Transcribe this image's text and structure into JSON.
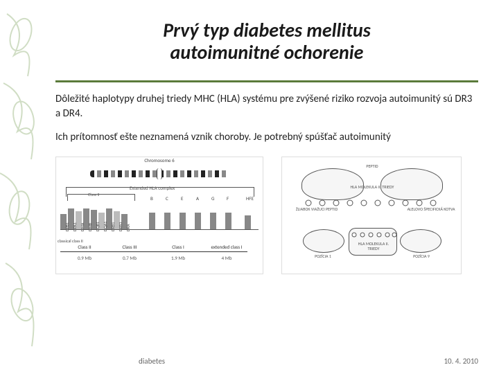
{
  "title": {
    "line1": "Prvý typ diabetes mellitus",
    "line2": "autoimunitné ochorenie"
  },
  "paragraphs": {
    "p1": "Dôležité haplotypy druhej triedy MHC (HLA) systému pre zvýšené riziko rozvoja autoimunitý sú DR3 a DR4.",
    "p2": "Ich prítomnosť ešte neznamená vznik choroby. Je potrebný spúšťač autoimunitý"
  },
  "figure1": {
    "chrom_caption": "Chromosome 6",
    "bracket_label": "Extended HLA complex",
    "subregion_label": "Class II",
    "gene_boxes": [
      {
        "h": 22,
        "c": "#888"
      },
      {
        "h": 30,
        "c": "#888"
      },
      {
        "h": 26,
        "c": "#bbb"
      },
      {
        "h": 30,
        "c": "#888"
      },
      {
        "h": 28,
        "c": "#888"
      },
      {
        "h": 24,
        "c": "#bbb"
      },
      {
        "h": 30,
        "c": "#888"
      },
      {
        "h": 26,
        "c": "#bbb"
      },
      {
        "h": 22,
        "c": "#888"
      }
    ],
    "gene_labels": [
      "DPB1",
      "DPA1",
      "DMA",
      "DMB",
      "DQB1",
      "DQA1",
      "DRB1",
      "DRB3",
      "DRA"
    ],
    "top_gene_letters": [
      "B",
      "C",
      "E",
      "A",
      "G",
      "F"
    ],
    "class_row": [
      {
        "label": "Class II",
        "w": 70
      },
      {
        "label": "Class III",
        "w": 60
      },
      {
        "label": "Class I",
        "w": 80
      },
      {
        "label": "extended class I",
        "w": 60
      }
    ],
    "mb_row": [
      "0.9 Mb",
      "0.7 Mb",
      "1.9 Mb",
      "4 Mb"
    ],
    "side_labels": {
      "left": "classical class II",
      "right": "HFE"
    }
  },
  "figure2": {
    "labels": {
      "peptid_top": "PEPTID",
      "hla_mol": "HLA MOLEKULA II. TRIEDY",
      "left_chain": "ŽLIABOK VIAŽUCI PEPTID",
      "right_chain": "ALELOVO ŠPECIFICKÁ KOTVA",
      "left_pocket": "POZÍCIA 1",
      "center_box": "HLA MOLEKULA II. TRIEDY",
      "right_pocket": "POZÍCIA 9"
    }
  },
  "footer": {
    "left": "diabetes",
    "right": "10. 4. 2010"
  },
  "colors": {
    "rule": "#5a7a3a",
    "deco": "#7aa05a"
  }
}
